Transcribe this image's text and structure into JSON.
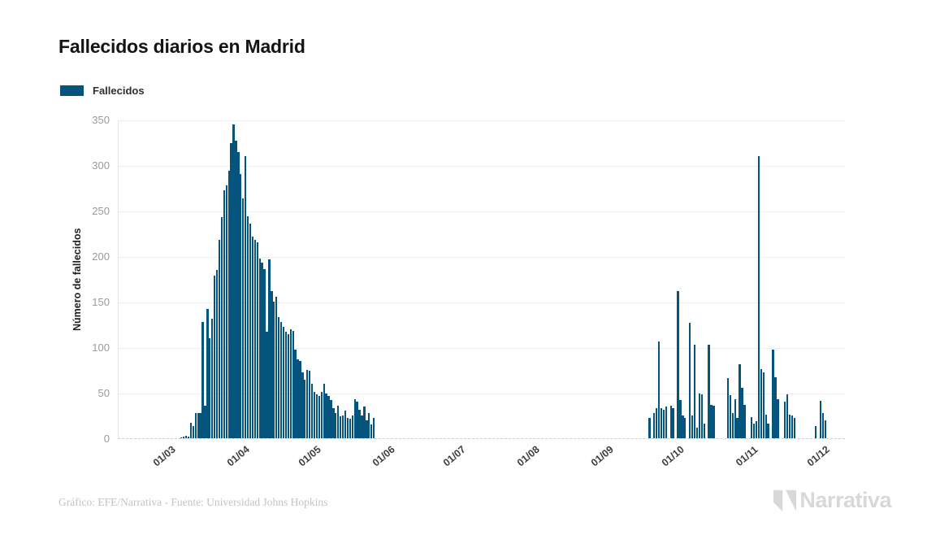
{
  "page": {
    "background": "#ffffff"
  },
  "header": {
    "title": "Fallecidos diarios en Madrid"
  },
  "legend": {
    "label": "Fallecidos"
  },
  "footer": {
    "credit": "Gráfico: EFE/Narrativa - Fuente: Universidad Johns Hopkins"
  },
  "branding": {
    "logo_text": "Narrativa"
  },
  "colors": {
    "bar": "#04547e",
    "grid": "#ececec",
    "axis": "#cfcfcf",
    "y_tick_text": "#9b9b9b",
    "x_tick_text": "#3d3d3d",
    "footer_text": "#c3c3c3",
    "logo": "#d8d8d8"
  },
  "chart_data": {
    "type": "bar",
    "title": "Fallecidos diarios en Madrid",
    "series_name": "Fallecidos",
    "xlabel": "",
    "ylabel": "Número de fallecidos",
    "ylim": [
      0,
      350
    ],
    "yticks": [
      0,
      50,
      100,
      150,
      200,
      250,
      300,
      350
    ],
    "grid": true,
    "legend_position": "top-left",
    "x_labels": [
      "01/03",
      "01/04",
      "01/05",
      "01/06",
      "01/07",
      "01/08",
      "01/09",
      "01/10",
      "01/11",
      "01/12"
    ],
    "x_label_format": "dd/mm",
    "x_domain": {
      "lead_days": 21,
      "trail_days": 8
    },
    "values_by_month": {
      "mar": [
        0,
        0,
        0,
        0,
        0,
        1,
        2,
        3,
        2,
        17,
        13,
        28,
        28,
        28,
        128,
        36,
        142,
        110,
        131,
        179,
        185,
        218,
        243,
        272,
        278,
        294,
        324,
        345,
        327,
        314,
        290
      ],
      "apr": [
        263,
        310,
        244,
        236,
        221,
        218,
        215,
        197,
        193,
        186,
        117,
        196,
        162,
        150,
        155,
        133,
        128,
        122,
        117,
        114,
        120,
        118,
        97,
        87,
        85,
        72,
        64,
        75,
        74,
        60
      ],
      "may": [
        51,
        48,
        46,
        51,
        60,
        49,
        46,
        42,
        33,
        28,
        36,
        24,
        25,
        30,
        22,
        21,
        25,
        43,
        40,
        31,
        25,
        35,
        20,
        28,
        15,
        22,
        0,
        0,
        0,
        0,
        0
      ],
      "jun": [
        0,
        0,
        0,
        0,
        0,
        0,
        0,
        0,
        0,
        0,
        0,
        0,
        0,
        0,
        0,
        0,
        0,
        0,
        0,
        0,
        0,
        0,
        0,
        0,
        0,
        0,
        0,
        0,
        0,
        0
      ],
      "jul": [
        0,
        0,
        0,
        0,
        0,
        0,
        0,
        0,
        0,
        0,
        0,
        0,
        0,
        0,
        0,
        0,
        0,
        0,
        0,
        0,
        0,
        0,
        0,
        0,
        0,
        0,
        0,
        0,
        0,
        0,
        0
      ],
      "aug": [
        0,
        0,
        0,
        0,
        0,
        0,
        0,
        0,
        0,
        0,
        0,
        0,
        0,
        0,
        0,
        0,
        0,
        0,
        0,
        0,
        0,
        0,
        0,
        0,
        0,
        0,
        0,
        0,
        0,
        0,
        0
      ],
      "sep": [
        0,
        0,
        0,
        0,
        0,
        0,
        0,
        0,
        0,
        0,
        0,
        0,
        0,
        0,
        0,
        0,
        0,
        0,
        22,
        0,
        28,
        33,
        106,
        33,
        31,
        35,
        0,
        36,
        33,
        0
      ],
      "oct": [
        162,
        42,
        25,
        22,
        0,
        127,
        25,
        103,
        12,
        49,
        48,
        16,
        0,
        103,
        37,
        36,
        0,
        0,
        0,
        0,
        0,
        66,
        47,
        28,
        43,
        22,
        81,
        55,
        37,
        0,
        0
      ],
      "nov": [
        23,
        16,
        19,
        310,
        76,
        72,
        26,
        16,
        0,
        97,
        67,
        43,
        0,
        0,
        40,
        48,
        26,
        25,
        22,
        0,
        0,
        0,
        0,
        0,
        0,
        0,
        0,
        13,
        0,
        41
      ],
      "dec": [
        28,
        20
      ]
    }
  }
}
